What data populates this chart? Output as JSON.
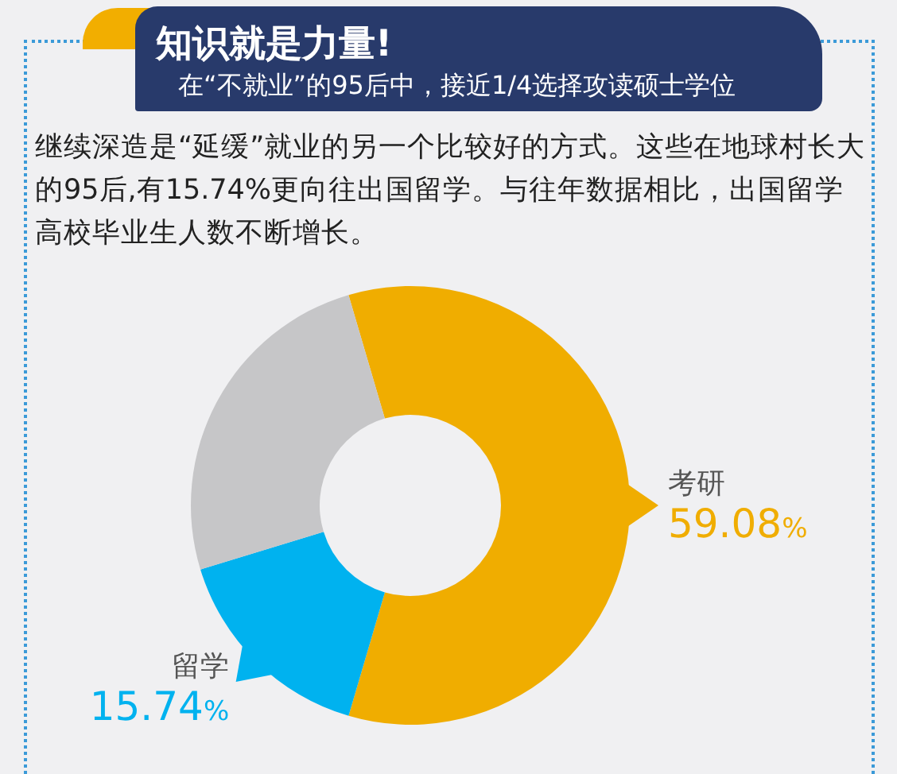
{
  "chart_data": {
    "type": "donut",
    "title": "知识就是力量!",
    "subtitle": "在“不就业”的95后中，接近1/4选择攻读硕士学位",
    "annotations": [
      "继续深造是“延缓”就业的另一个比较好的方式。这些在地球村长大的95后,有15.74%更向往出国留学。与往年数据相比，出国留学高校毕业生人数不断增长。"
    ],
    "categories": [
      "考研",
      "留学",
      null
    ],
    "values": [
      59.08,
      15.74,
      25.18
    ],
    "colors": [
      "#f0ad00",
      "#00b2ef",
      "#c6c6c8"
    ],
    "value_labels": [
      "59.08%",
      "15.74%",
      null
    ]
  }
}
